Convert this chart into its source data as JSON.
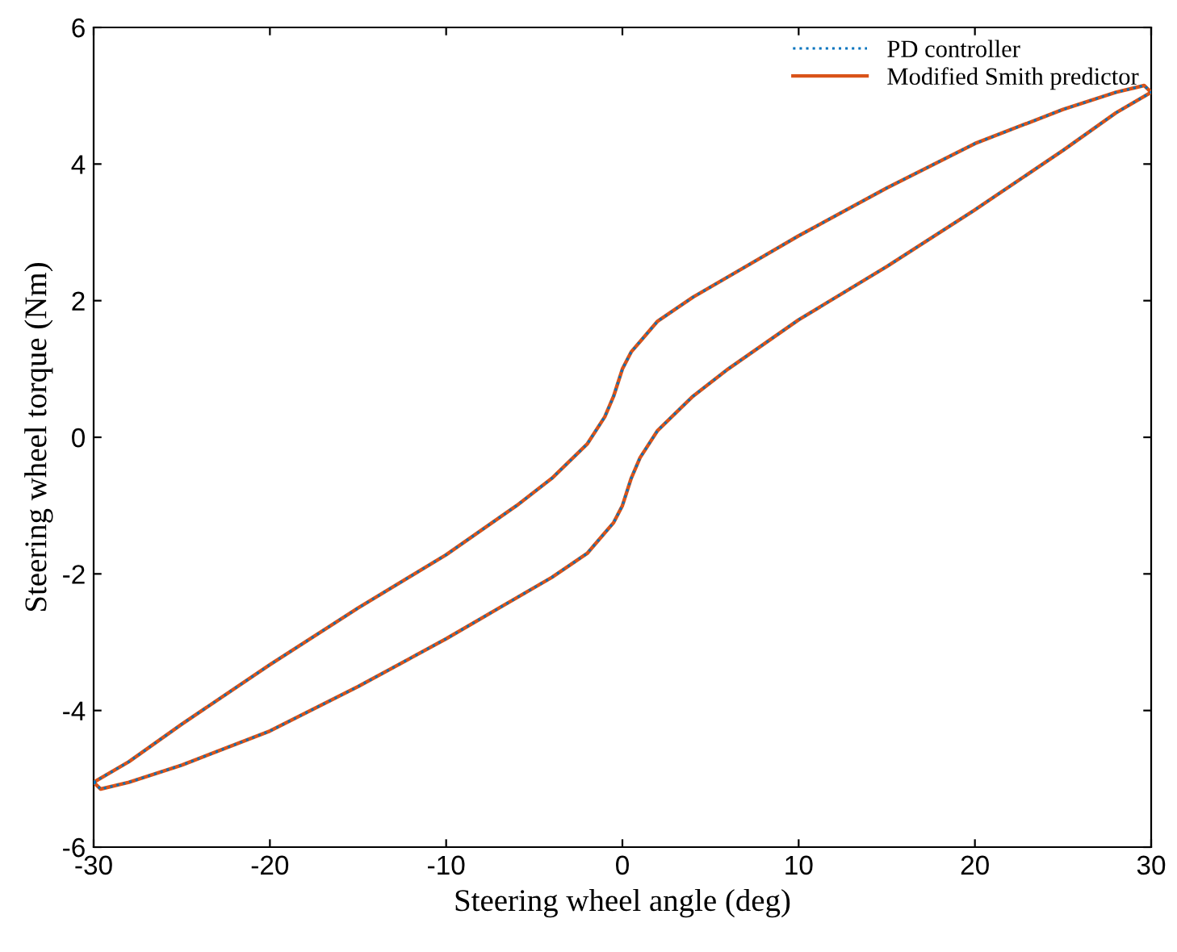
{
  "chart_data": {
    "type": "line",
    "xlabel": "Steering wheel angle (deg)",
    "ylabel": "Steering wheel torque (Nm)",
    "xlim": [
      -30,
      30
    ],
    "ylim": [
      -6,
      6
    ],
    "xticks": [
      -30,
      -20,
      -10,
      0,
      10,
      20,
      30
    ],
    "yticks": [
      -6,
      -4,
      -2,
      0,
      2,
      4,
      6
    ],
    "grid": false,
    "legend": "top right",
    "series": [
      {
        "name": "PD controller",
        "color": "#0072bd",
        "line_style": "dotted",
        "x": [
          -30,
          -28,
          -25,
          -20,
          -15,
          -10,
          -6,
          -4,
          -2,
          -1,
          -0.5,
          0,
          0.5,
          1,
          2,
          4,
          7,
          10,
          15,
          20,
          25,
          28,
          29.6,
          30
        ],
        "values": [
          -5.05,
          -4.75,
          -4.2,
          -3.33,
          -2.5,
          -1.72,
          -1.0,
          -0.6,
          -0.1,
          0.3,
          0.6,
          1.0,
          1.25,
          1.4,
          1.7,
          2.05,
          2.5,
          2.95,
          3.65,
          4.3,
          4.8,
          5.05,
          5.15,
          5.05
        ]
      },
      {
        "color": "#0072bd",
        "line_style": "dotted",
        "x": [
          -30,
          -29.6,
          -28,
          -25,
          -20,
          -15,
          -10,
          -7,
          -4,
          -2,
          -1,
          -0.5,
          0,
          0.5,
          1,
          2,
          4,
          6,
          10,
          15,
          20,
          25,
          28,
          30
        ],
        "values": [
          -5.05,
          -5.15,
          -5.05,
          -4.8,
          -4.3,
          -3.65,
          -2.95,
          -2.5,
          -2.05,
          -1.7,
          -1.4,
          -1.25,
          -1.0,
          -0.6,
          -0.3,
          0.1,
          0.6,
          1.0,
          1.72,
          2.5,
          3.33,
          4.2,
          4.75,
          5.05
        ]
      },
      {
        "name": "Modified Smith predictor",
        "color": "#d95319",
        "line_style": "solid",
        "x": [
          -30,
          -28,
          -25,
          -20,
          -15,
          -10,
          -6,
          -4,
          -2,
          -1,
          -0.5,
          0,
          0.5,
          1,
          2,
          4,
          7,
          10,
          15,
          20,
          25,
          28,
          29.6,
          30
        ],
        "values": [
          -5.05,
          -4.75,
          -4.2,
          -3.33,
          -2.5,
          -1.72,
          -1.0,
          -0.6,
          -0.1,
          0.3,
          0.6,
          1.0,
          1.25,
          1.4,
          1.7,
          2.05,
          2.5,
          2.95,
          3.65,
          4.3,
          4.8,
          5.05,
          5.15,
          5.05
        ]
      },
      {
        "color": "#d95319",
        "line_style": "solid",
        "x": [
          -30,
          -29.6,
          -28,
          -25,
          -20,
          -15,
          -10,
          -7,
          -4,
          -2,
          -1,
          -0.5,
          0,
          0.5,
          1,
          2,
          4,
          6,
          10,
          15,
          20,
          25,
          28,
          30
        ],
        "values": [
          -5.05,
          -5.15,
          -5.05,
          -4.8,
          -4.3,
          -3.65,
          -2.95,
          -2.5,
          -2.05,
          -1.7,
          -1.4,
          -1.25,
          -1.0,
          -0.6,
          -0.3,
          0.1,
          0.6,
          1.0,
          1.72,
          2.5,
          3.33,
          4.2,
          4.75,
          5.05
        ]
      }
    ]
  }
}
